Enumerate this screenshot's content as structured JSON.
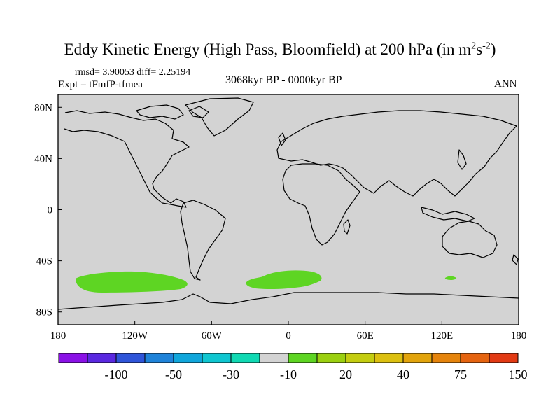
{
  "title": {
    "main": "Eddy Kinetic Energy (High Pass, Bloomfield) at 200 hPa (in m",
    "sup1": "2",
    "mid": "s",
    "sup2": "-2",
    "close": ")"
  },
  "stats": "rmsd= 3.90053 diff= 2.25194",
  "experiment": "Expt = tFmfP-tfmea",
  "period": "3068kyr BP - 0000kyr BP",
  "season": "ANN",
  "colors": {
    "land_sea_fill": "#d3d3d3",
    "coastline": "#000000",
    "anomaly_fill": "#5ed523"
  },
  "map": {
    "projection": "cylindrical-equidistant",
    "lon_range": [
      -180,
      180
    ],
    "lat_range": [
      -90,
      90
    ],
    "x_ticks": [
      {
        "value": -180,
        "label": "180"
      },
      {
        "value": -120,
        "label": "120W"
      },
      {
        "value": -60,
        "label": "60W"
      },
      {
        "value": 0,
        "label": "0"
      },
      {
        "value": 60,
        "label": "60E"
      },
      {
        "value": 120,
        "label": "120E"
      },
      {
        "value": 180,
        "label": "180"
      }
    ],
    "y_ticks": [
      {
        "value": 80,
        "label": "80N"
      },
      {
        "value": 40,
        "label": "40N"
      },
      {
        "value": 0,
        "label": "0"
      },
      {
        "value": -40,
        "label": "40S"
      },
      {
        "value": -80,
        "label": "80S"
      }
    ]
  },
  "colorbar": {
    "colors": [
      "#8a11e6",
      "#5a28e0",
      "#2f55d9",
      "#1f83d9",
      "#10a6db",
      "#0fc6d0",
      "#10d9b3",
      "#d3d3d3",
      "#5ed523",
      "#9bd010",
      "#c4cd10",
      "#dcc010",
      "#e2a40c",
      "#e5840c",
      "#e56410",
      "#e23a14"
    ],
    "labels": [
      {
        "boundary": 2,
        "text": "-100"
      },
      {
        "boundary": 4,
        "text": "-50"
      },
      {
        "boundary": 6,
        "text": "-30"
      },
      {
        "boundary": 8,
        "text": "-10"
      },
      {
        "boundary": 10,
        "text": "20"
      },
      {
        "boundary": 12,
        "text": "40"
      },
      {
        "boundary": 14,
        "text": "75"
      },
      {
        "boundary": 16,
        "text": "150"
      }
    ]
  }
}
